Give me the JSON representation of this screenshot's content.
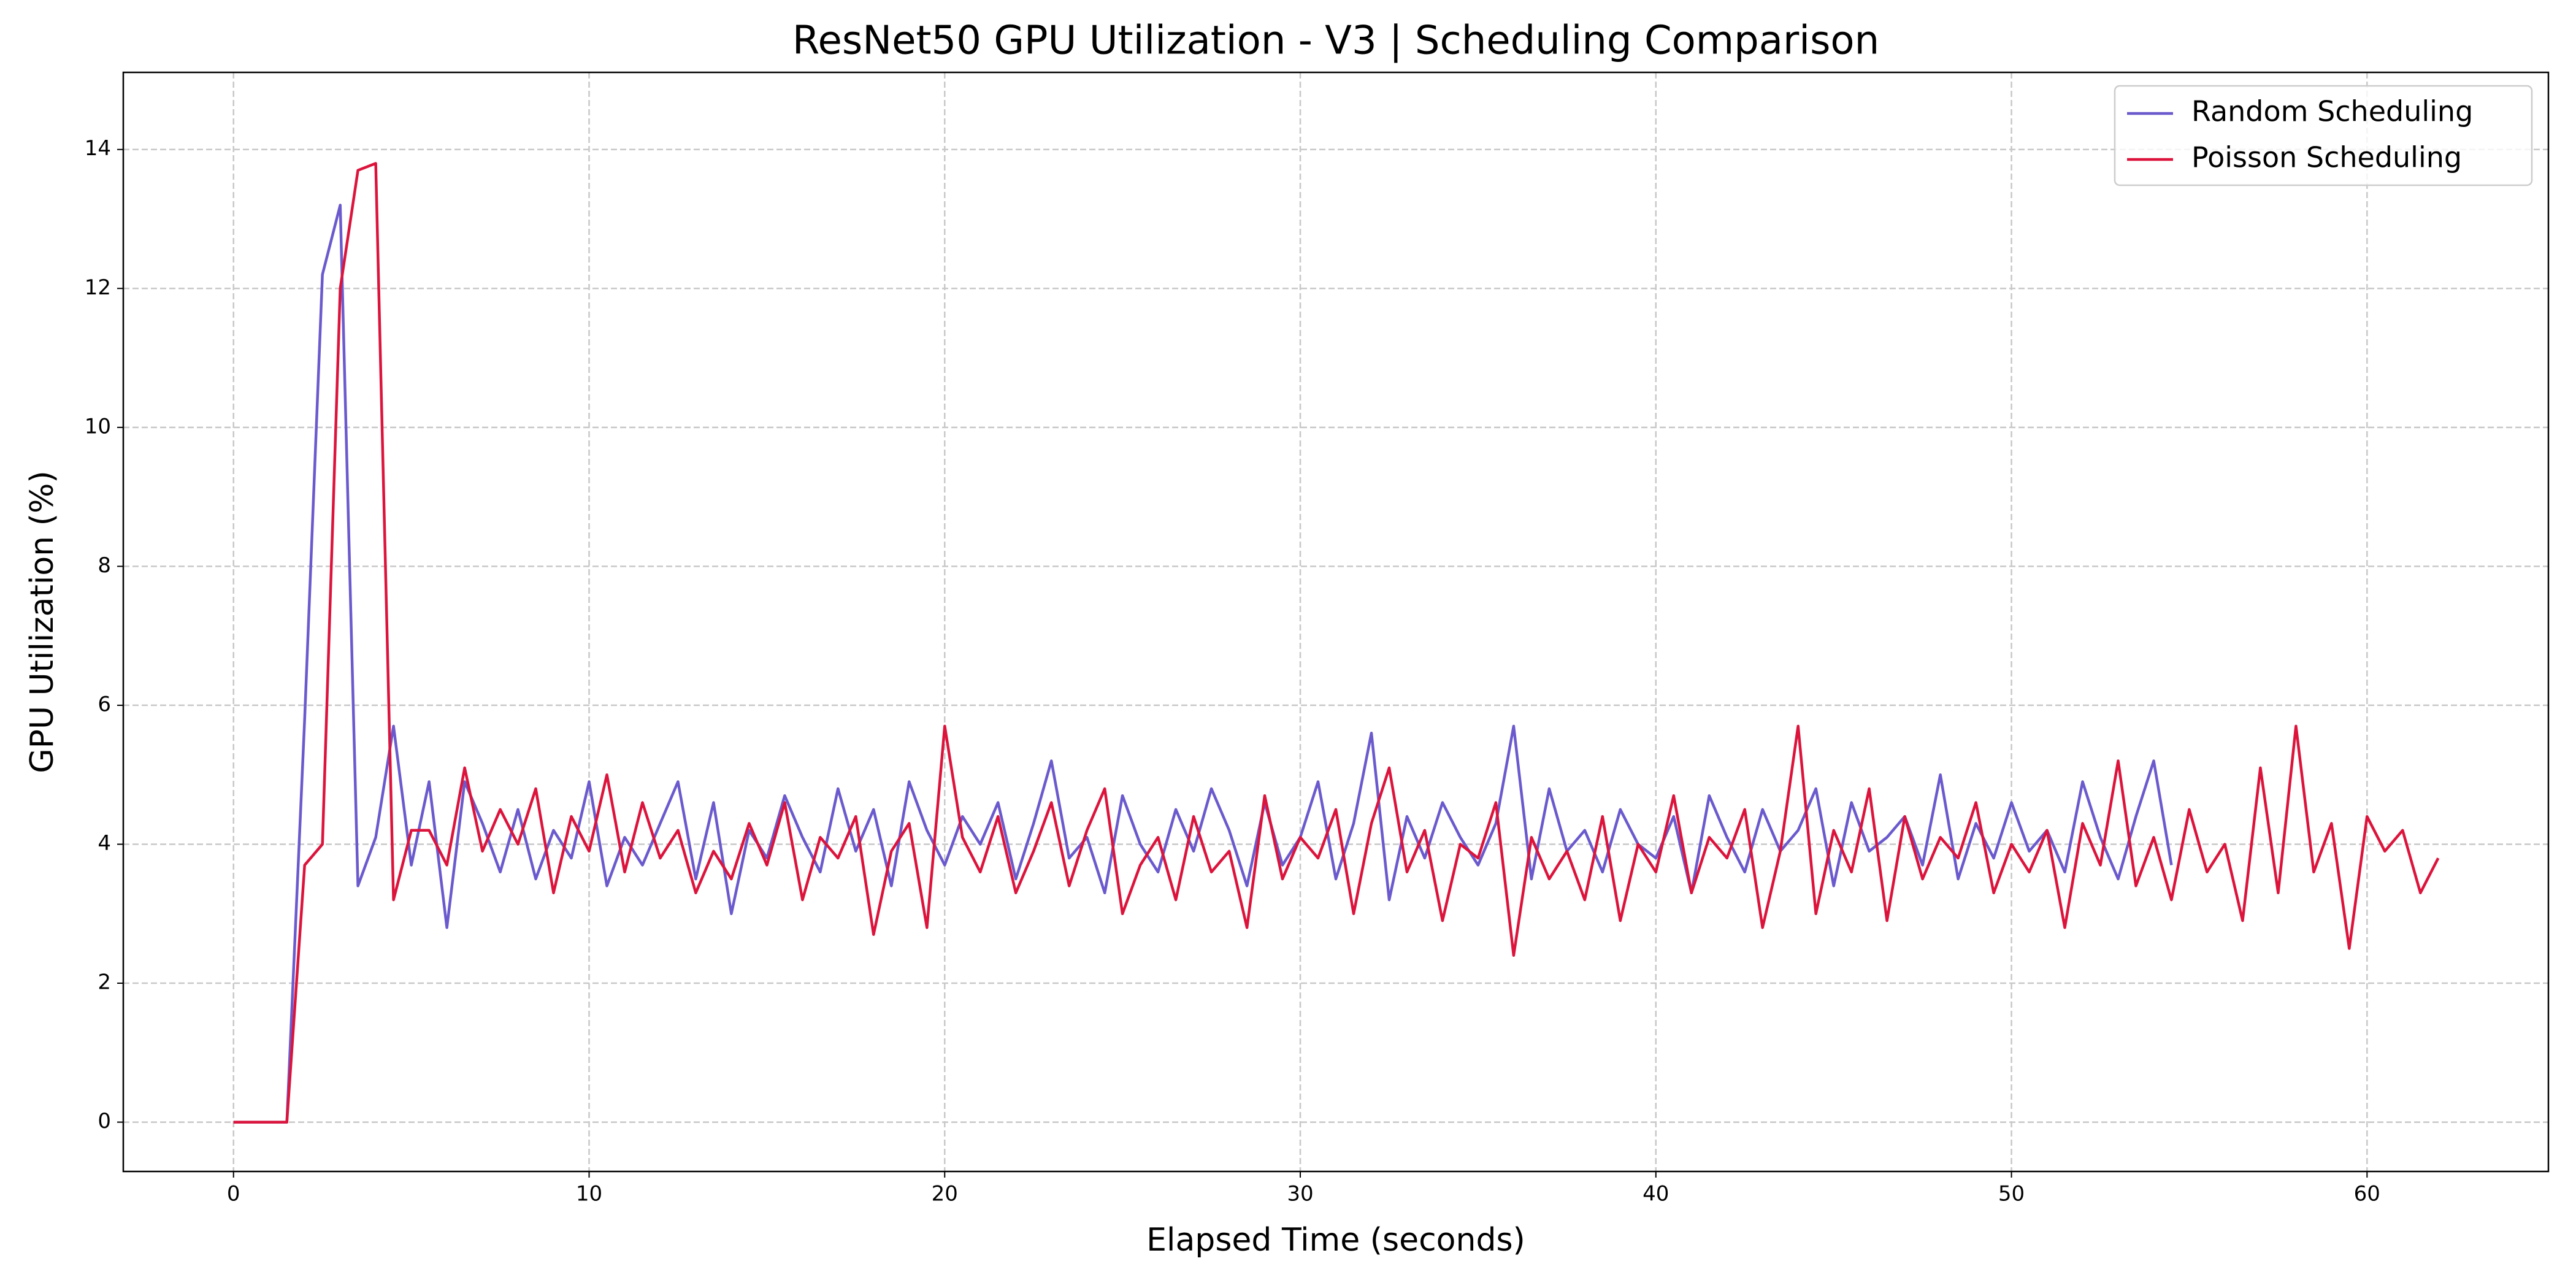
{
  "chart_data": {
    "type": "line",
    "title": "ResNet50 GPU Utilization - V3 | Scheduling Comparison",
    "xlabel": "Elapsed Time (seconds)",
    "ylabel": "GPU Utilization (%)",
    "x": [
      0,
      0.5,
      1,
      1.5,
      2,
      2.5,
      3,
      3.5,
      4,
      4.5,
      5,
      5.5,
      6,
      6.5,
      7,
      7.5,
      8,
      8.5,
      9,
      9.5,
      10,
      10.5,
      11,
      11.5,
      12,
      12.5,
      13,
      13.5,
      14,
      14.5,
      15,
      15.5,
      16,
      16.5,
      17,
      17.5,
      18,
      18.5,
      19,
      19.5,
      20,
      20.5,
      21,
      21.5,
      22,
      22.5,
      23,
      23.5,
      24,
      24.5,
      25,
      25.5,
      26,
      26.5,
      27,
      27.5,
      28,
      28.5,
      29,
      29.5,
      30,
      30.5,
      31,
      31.5,
      32,
      32.5,
      33,
      33.5,
      34,
      34.5,
      35,
      35.5,
      36,
      36.5,
      37,
      37.5,
      38,
      38.5,
      39,
      39.5,
      40,
      40.5,
      41,
      41.5,
      42,
      42.5,
      43,
      43.5,
      44,
      44.5,
      45,
      45.5,
      46,
      46.5,
      47,
      47.5,
      48,
      48.5,
      49,
      49.5,
      50,
      50.5,
      51,
      51.5,
      52,
      52.5,
      53,
      53.5,
      54,
      54.5,
      55,
      55.5,
      56,
      56.5,
      57,
      57.5,
      58,
      58.5,
      59,
      59.5,
      60,
      60.5,
      61,
      61.5,
      62
    ],
    "series": [
      {
        "name": "Random Scheduling",
        "color": "#6a5acd",
        "values": [
          0,
          0,
          0,
          0,
          5.8,
          12.2,
          13.2,
          3.4,
          4.1,
          5.7,
          3.7,
          4.9,
          2.8,
          4.9,
          4.3,
          3.6,
          4.5,
          3.5,
          4.2,
          3.8,
          4.9,
          3.4,
          4.1,
          3.7,
          4.3,
          4.9,
          3.5,
          4.6,
          3.0,
          4.2,
          3.8,
          4.7,
          4.1,
          3.6,
          4.8,
          3.9,
          4.5,
          3.4,
          4.9,
          4.2,
          3.7,
          4.4,
          4.0,
          4.6,
          3.5,
          4.3,
          5.2,
          3.8,
          4.1,
          3.3,
          4.7,
          4.0,
          3.6,
          4.5,
          3.9,
          4.8,
          4.2,
          3.4,
          4.6,
          3.7,
          4.1,
          4.9,
          3.5,
          4.3,
          5.6,
          3.2,
          4.4,
          3.8,
          4.6,
          4.1,
          3.7,
          4.3,
          5.7,
          3.5,
          4.8,
          3.9,
          4.2,
          3.6,
          4.5,
          4.0,
          3.8,
          4.4,
          3.3,
          4.7,
          4.1,
          3.6,
          4.5,
          3.9,
          4.2,
          4.8,
          3.4,
          4.6,
          3.9,
          4.1,
          4.4,
          3.7,
          5.0,
          3.5,
          4.3,
          3.8,
          4.6,
          3.9,
          4.2,
          3.6,
          4.9,
          4.1,
          3.5,
          4.4,
          5.2,
          3.7,
          null,
          null,
          null,
          null,
          null,
          null,
          null,
          null,
          null,
          null,
          null,
          null,
          null,
          null,
          null
        ]
      },
      {
        "name": "Poisson Scheduling",
        "color": "#dc143c",
        "values": [
          0,
          0,
          0,
          0,
          3.7,
          4.0,
          12.0,
          13.7,
          13.8,
          3.2,
          4.2,
          4.2,
          3.7,
          5.1,
          3.9,
          4.5,
          4.0,
          4.8,
          3.3,
          4.4,
          3.9,
          5.0,
          3.6,
          4.6,
          3.8,
          4.2,
          3.3,
          3.9,
          3.5,
          4.3,
          3.7,
          4.6,
          3.2,
          4.1,
          3.8,
          4.4,
          2.7,
          3.9,
          4.3,
          2.8,
          5.7,
          4.1,
          3.6,
          4.4,
          3.3,
          3.9,
          4.6,
          3.4,
          4.2,
          4.8,
          3.0,
          3.7,
          4.1,
          3.2,
          4.4,
          3.6,
          3.9,
          2.8,
          4.7,
          3.5,
          4.1,
          3.8,
          4.5,
          3.0,
          4.3,
          5.1,
          3.6,
          4.2,
          2.9,
          4.0,
          3.8,
          4.6,
          2.4,
          4.1,
          3.5,
          3.9,
          3.2,
          4.4,
          2.9,
          4.0,
          3.6,
          4.7,
          3.3,
          4.1,
          3.8,
          4.5,
          2.8,
          3.9,
          5.7,
          3.0,
          4.2,
          3.6,
          4.8,
          2.9,
          4.4,
          3.5,
          4.1,
          3.8,
          4.6,
          3.3,
          4.0,
          3.6,
          4.2,
          2.8,
          4.3,
          3.7,
          5.2,
          3.4,
          4.1,
          3.2,
          4.5,
          3.6,
          4.0,
          2.9,
          5.1,
          3.3,
          5.7,
          3.6,
          4.3,
          2.5,
          4.4,
          3.9,
          4.2,
          3.3,
          3.8
        ]
      }
    ],
    "xlim": [
      -3.1,
      65.1
    ],
    "ylim": [
      -0.71,
      15.11
    ],
    "xticks": [
      0,
      10,
      20,
      30,
      40,
      50,
      60
    ],
    "yticks": [
      0,
      2,
      4,
      6,
      8,
      10,
      12,
      14
    ],
    "grid": true,
    "legend": "upper right"
  }
}
